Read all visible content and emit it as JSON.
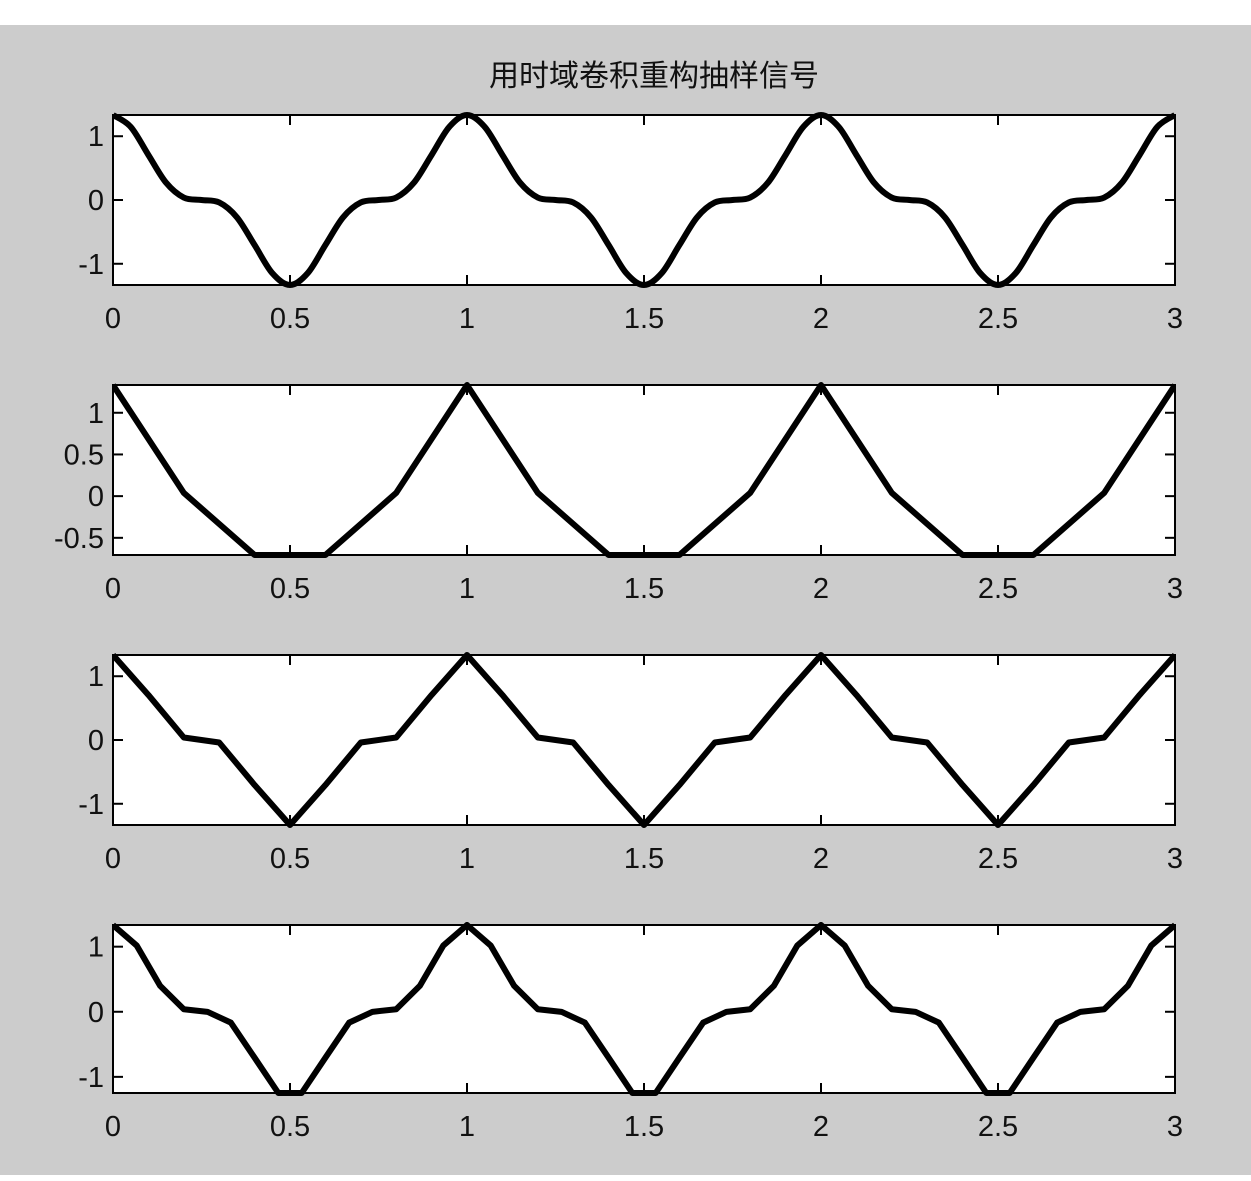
{
  "title": "用时域卷积重构抽样信号",
  "colors": {
    "background": "#cccccc",
    "axes": "#ffffff",
    "line": "#000000"
  },
  "chart_data": [
    {
      "type": "line",
      "title": "用时域卷积重构抽样信号",
      "smooth": true,
      "xlim": [
        0,
        3
      ],
      "ylim": [
        -1.333,
        1.333
      ],
      "xticks": [
        0,
        0.5,
        1,
        1.5,
        2,
        2.5,
        3
      ],
      "xtick_labels": [
        "0",
        "0.5",
        "1",
        "1.5",
        "2",
        "2.5",
        "3"
      ],
      "yticks": [
        -1,
        0,
        1
      ],
      "ytick_labels": [
        "-1",
        "0",
        "1"
      ],
      "grid": false,
      "x": [
        0,
        0.05,
        0.1,
        0.15,
        0.2,
        0.25,
        0.3,
        0.35,
        0.4,
        0.45,
        0.5,
        0.55,
        0.6,
        0.65,
        0.7,
        0.75,
        0.8,
        0.85,
        0.9,
        0.95,
        1,
        1.05,
        1.1,
        1.15,
        1.2,
        1.25,
        1.3,
        1.35,
        1.4,
        1.45,
        1.5,
        1.55,
        1.6,
        1.65,
        1.7,
        1.75,
        1.8,
        1.85,
        1.9,
        1.95,
        2,
        2.05,
        2.1,
        2.15,
        2.2,
        2.25,
        2.3,
        2.35,
        2.4,
        2.45,
        2.5,
        2.55,
        2.6,
        2.65,
        2.7,
        2.75,
        2.8,
        2.85,
        2.9,
        2.95,
        3
      ],
      "y": [
        1.333,
        1.147,
        0.706,
        0.271,
        0.039,
        0,
        -0.039,
        -0.271,
        -0.706,
        -1.147,
        -1.333,
        -1.147,
        -0.706,
        -0.271,
        -0.039,
        0,
        0.039,
        0.271,
        0.706,
        1.147,
        1.333,
        1.147,
        0.706,
        0.271,
        0.039,
        0,
        -0.039,
        -0.271,
        -0.706,
        -1.147,
        -1.333,
        -1.147,
        -0.706,
        -0.271,
        -0.039,
        0,
        0.039,
        0.271,
        0.706,
        1.147,
        1.333,
        1.147,
        0.706,
        0.271,
        0.039,
        0,
        -0.039,
        -0.271,
        -0.706,
        -1.147,
        -1.333,
        -1.147,
        -0.706,
        -0.271,
        -0.039,
        0,
        0.039,
        0.271,
        0.706,
        1.147,
        1.333
      ]
    },
    {
      "type": "line",
      "xlim": [
        0,
        3
      ],
      "ylim": [
        -0.706,
        1.333
      ],
      "xticks": [
        0,
        0.5,
        1,
        1.5,
        2,
        2.5,
        3
      ],
      "xtick_labels": [
        "0",
        "0.5",
        "1",
        "1.5",
        "2",
        "2.5",
        "3"
      ],
      "yticks": [
        -0.5,
        0,
        0.5,
        1
      ],
      "ytick_labels": [
        "-0.5",
        "0",
        "0.5",
        "1"
      ],
      "grid": false,
      "x": [
        0,
        0.2,
        0.4,
        0.6,
        0.8,
        1,
        1.2,
        1.4,
        1.6,
        1.8,
        2,
        2.2,
        2.4,
        2.6,
        2.8,
        3
      ],
      "y": [
        1.333,
        0.039,
        -0.706,
        -0.706,
        0.039,
        1.333,
        0.039,
        -0.706,
        -0.706,
        0.039,
        1.333,
        0.039,
        -0.706,
        -0.706,
        0.039,
        1.333
      ]
    },
    {
      "type": "line",
      "xlim": [
        0,
        3
      ],
      "ylim": [
        -1.333,
        1.333
      ],
      "xticks": [
        0,
        0.5,
        1,
        1.5,
        2,
        2.5,
        3
      ],
      "xtick_labels": [
        "0",
        "0.5",
        "1",
        "1.5",
        "2",
        "2.5",
        "3"
      ],
      "yticks": [
        -1,
        0,
        1
      ],
      "ytick_labels": [
        "-1",
        "0",
        "1"
      ],
      "grid": false,
      "x": [
        0,
        0.1,
        0.2,
        0.3,
        0.4,
        0.5,
        0.6,
        0.7,
        0.8,
        0.9,
        1,
        1.1,
        1.2,
        1.3,
        1.4,
        1.5,
        1.6,
        1.7,
        1.8,
        1.9,
        2,
        2.1,
        2.2,
        2.3,
        2.4,
        2.5,
        2.6,
        2.7,
        2.8,
        2.9,
        3
      ],
      "y": [
        1.333,
        0.706,
        0.039,
        -0.039,
        -0.706,
        -1.333,
        -0.706,
        -0.039,
        0.039,
        0.706,
        1.333,
        0.706,
        0.039,
        -0.039,
        -0.706,
        -1.333,
        -0.706,
        -0.039,
        0.039,
        0.706,
        1.333,
        0.706,
        0.039,
        -0.039,
        -0.706,
        -1.333,
        -0.706,
        -0.039,
        0.039,
        0.706,
        1.333
      ]
    },
    {
      "type": "line",
      "xlim": [
        0,
        3
      ],
      "ylim": [
        -1.248,
        1.333
      ],
      "xticks": [
        0,
        0.5,
        1,
        1.5,
        2,
        2.5,
        3
      ],
      "xtick_labels": [
        "0",
        "0.5",
        "1",
        "1.5",
        "2",
        "2.5",
        "3"
      ],
      "yticks": [
        -1,
        0,
        1
      ],
      "ytick_labels": [
        "-1",
        "0",
        "1"
      ],
      "grid": false,
      "x": [
        0,
        0.067,
        0.133,
        0.2,
        0.267,
        0.333,
        0.4,
        0.467,
        0.533,
        0.6,
        0.667,
        0.733,
        0.8,
        0.867,
        0.933,
        1,
        1.067,
        1.133,
        1.2,
        1.267,
        1.333,
        1.4,
        1.467,
        1.533,
        1.6,
        1.667,
        1.733,
        1.8,
        1.867,
        1.933,
        2,
        2.067,
        2.133,
        2.2,
        2.267,
        2.333,
        2.4,
        2.467,
        2.533,
        2.6,
        2.667,
        2.733,
        2.8,
        2.867,
        2.933,
        3
      ],
      "y": [
        1.333,
        1.017,
        0.399,
        0.039,
        -0.001,
        -0.167,
        -0.706,
        -1.248,
        -1.248,
        -0.706,
        -0.167,
        -0.001,
        0.039,
        0.399,
        1.017,
        1.333,
        1.017,
        0.399,
        0.039,
        -0.001,
        -0.167,
        -0.706,
        -1.248,
        -1.248,
        -0.706,
        -0.167,
        -0.001,
        0.039,
        0.399,
        1.017,
        1.333,
        1.017,
        0.399,
        0.039,
        -0.001,
        -0.167,
        -0.706,
        -1.248,
        -1.248,
        -0.706,
        -0.167,
        -0.001,
        0.039,
        0.399,
        1.017,
        1.333
      ]
    }
  ]
}
